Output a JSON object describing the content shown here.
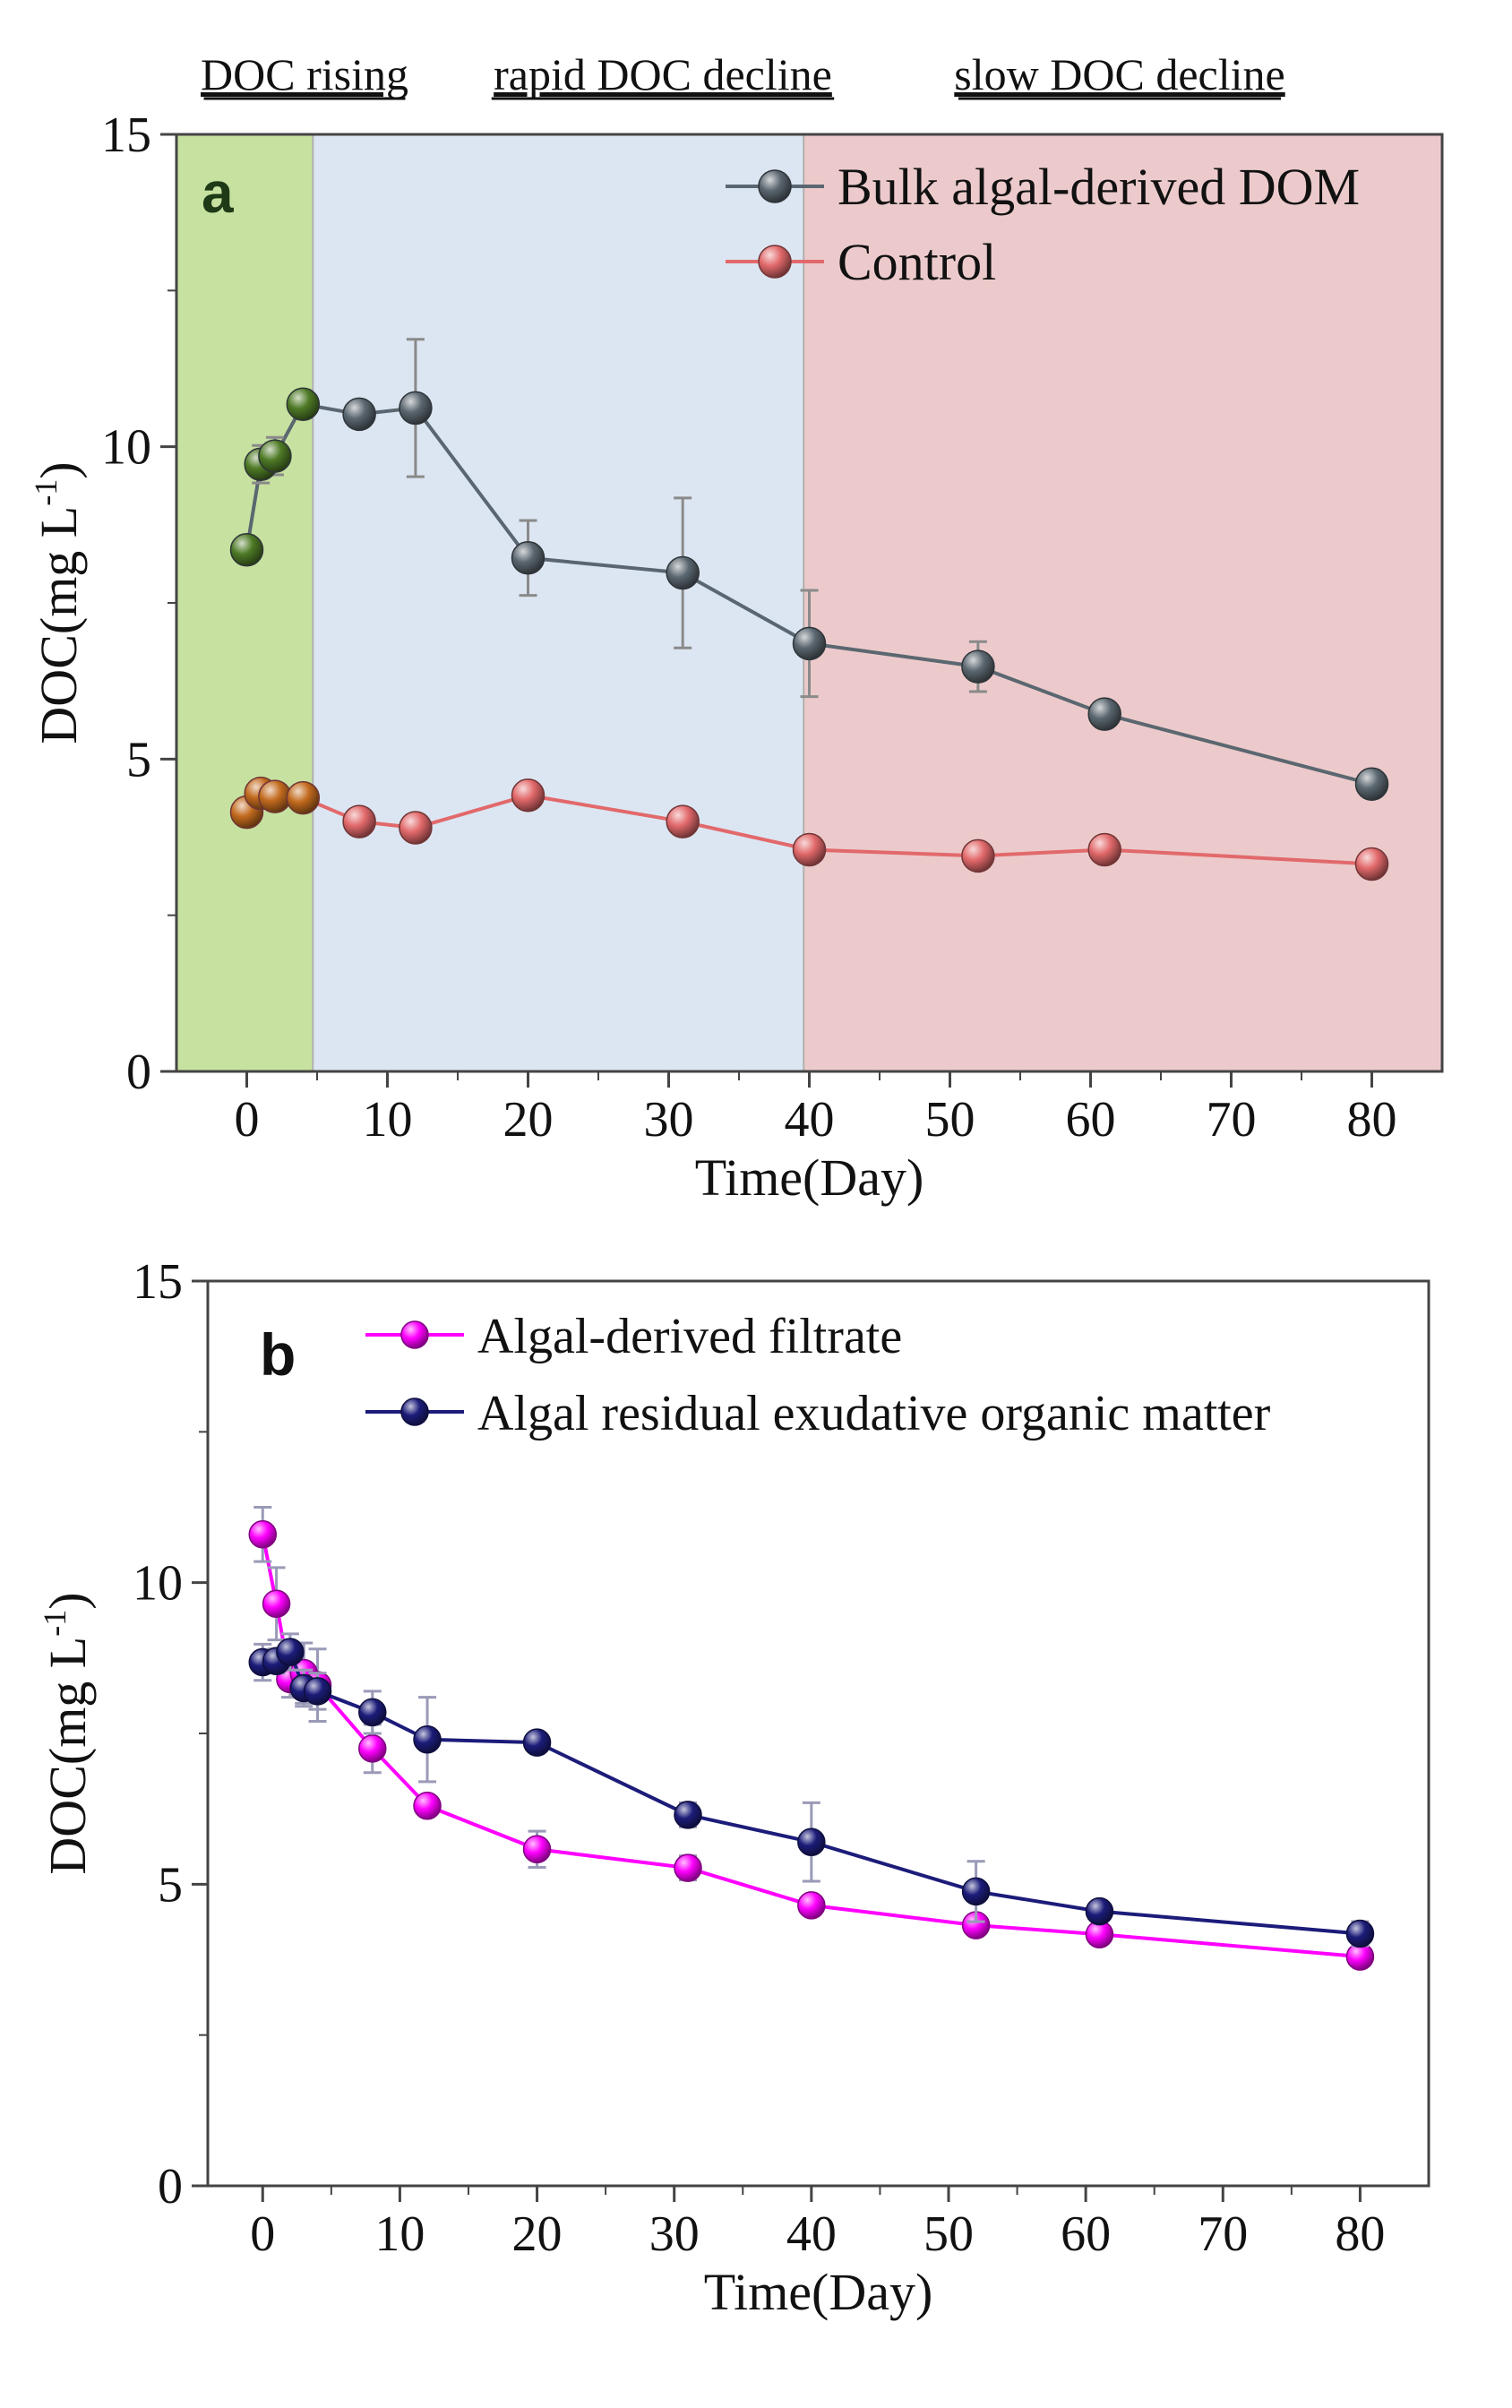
{
  "chart_data": [
    {
      "panel": "a",
      "type": "line",
      "xlabel": "Time(Day)",
      "ylabel": "DOC(mg L",
      "ylabel_sup": "-1",
      "ylabel_close": ")",
      "xlim": [
        -5,
        85
      ],
      "ylim": [
        0,
        15
      ],
      "xticks": [
        0,
        10,
        20,
        30,
        40,
        50,
        60,
        70,
        80
      ],
      "yticks": [
        0,
        5,
        10,
        15
      ],
      "phases": [
        {
          "label": "DOC rising",
          "x_start": -5,
          "x_end": 4.7,
          "color": "#c7e2a0"
        },
        {
          "label": "rapid DOC decline",
          "x_start": 4.7,
          "x_end": 39.6,
          "color": "#dce6f2"
        },
        {
          "label": "slow DOC decline",
          "x_start": 39.6,
          "x_end": 85,
          "color": "#eccacb"
        }
      ],
      "legend_position": "top-right",
      "series": [
        {
          "name": "Bulk algal-derived DOM",
          "color": "#5b6770",
          "x": [
            0,
            1,
            2,
            4,
            8,
            12,
            20,
            31,
            40,
            52,
            61,
            80
          ],
          "y": [
            8.35,
            9.72,
            9.85,
            10.68,
            10.52,
            10.62,
            8.22,
            7.98,
            6.85,
            6.48,
            5.72,
            4.6
          ],
          "err": [
            0,
            0.3,
            0.3,
            0,
            0,
            1.1,
            0.6,
            1.2,
            0.85,
            0.4,
            0,
            0
          ]
        },
        {
          "name": "Control",
          "color": "#e2696b",
          "x": [
            0,
            1,
            2,
            4,
            8,
            12,
            20,
            31,
            40,
            52,
            61,
            80
          ],
          "y": [
            4.15,
            4.45,
            4.4,
            4.38,
            4.0,
            3.9,
            4.42,
            4.0,
            3.55,
            3.45,
            3.55,
            3.32
          ],
          "err": [
            0,
            0,
            0,
            0,
            0,
            0,
            0,
            0,
            0,
            0,
            0,
            0
          ]
        }
      ]
    },
    {
      "panel": "b",
      "type": "line",
      "xlabel": "Time(Day)",
      "ylabel": "DOC(mg L",
      "ylabel_sup": "-1",
      "ylabel_close": ")",
      "xlim": [
        -4,
        85
      ],
      "ylim": [
        0,
        15
      ],
      "xticks": [
        0,
        10,
        20,
        30,
        40,
        50,
        60,
        70,
        80
      ],
      "yticks": [
        0,
        5,
        10,
        15
      ],
      "legend_position": "top-left",
      "series": [
        {
          "name": "Algal-derived filtrate",
          "color": "#ff00ff",
          "x": [
            0,
            1,
            2,
            3,
            4,
            8,
            12,
            20,
            31,
            40,
            52,
            61,
            80
          ],
          "y": [
            10.8,
            9.65,
            8.4,
            8.5,
            8.3,
            7.25,
            6.3,
            5.58,
            5.27,
            4.65,
            4.32,
            4.17,
            3.8
          ],
          "err": [
            0.45,
            0.6,
            0.3,
            0.5,
            0.6,
            0.4,
            0.15,
            0.3,
            0.2,
            0.15,
            0.1,
            0.1,
            0.1
          ]
        },
        {
          "name": "Algal residual exudative organic matter",
          "color": "#1c1c7a",
          "x": [
            0,
            1,
            2,
            3,
            4,
            8,
            12,
            20,
            31,
            40,
            52,
            61,
            80
          ],
          "y": [
            8.68,
            8.7,
            8.85,
            8.25,
            8.2,
            7.85,
            7.4,
            7.35,
            6.15,
            5.7,
            4.88,
            4.55,
            4.18
          ],
          "err": [
            0.3,
            0.2,
            0.3,
            0.3,
            0.3,
            0.35,
            0.7,
            0,
            0.2,
            0.65,
            0.5,
            0.15,
            0.2
          ]
        }
      ]
    }
  ]
}
